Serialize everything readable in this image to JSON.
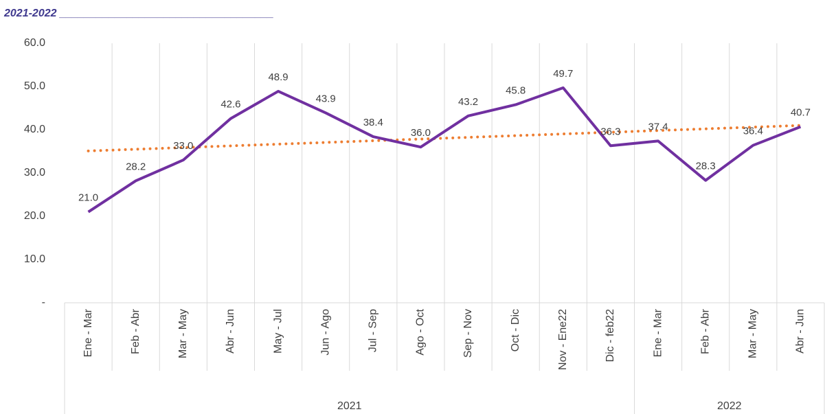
{
  "chart_data": {
    "type": "line",
    "title": "2021-2022 ___________________________________",
    "categories": [
      "Ene - Mar",
      "Feb - Abr",
      "Mar - May",
      "Abr - Jun",
      "May - Jul",
      "Jun - Ago",
      "Jul - Sep",
      "Ago - Oct",
      "Sep - Nov",
      "Oct - Dic",
      "Nov - Ene22",
      "Dic - feb22",
      "Ene - Mar",
      "Feb - Abr",
      "Mar - May",
      "Abr - Jun"
    ],
    "groups": [
      {
        "label": "2021",
        "count": 12
      },
      {
        "label": "2022",
        "count": 4
      }
    ],
    "values": [
      21.0,
      28.2,
      33.0,
      42.6,
      48.9,
      43.9,
      38.4,
      36.0,
      43.2,
      45.8,
      49.7,
      36.3,
      37.4,
      28.3,
      36.4,
      40.7
    ],
    "value_labels": [
      "21.0",
      "28.2",
      "33.0",
      "42.6",
      "48.9",
      "43.9",
      "38.4",
      "36.0",
      "43.2",
      "45.8",
      "49.7",
      "36.3",
      "37.4",
      "28.3",
      "36.4",
      "40.7"
    ],
    "color": "#7030a0",
    "trendline": {
      "values": [
        35.1,
        41.0
      ],
      "color": "#ed7d31"
    },
    "ylim": [
      0,
      60
    ],
    "yticks": [
      {
        "value": 0,
        "label": "-"
      },
      {
        "value": 10,
        "label": "10.0"
      },
      {
        "value": 20,
        "label": "20.0"
      },
      {
        "value": 30,
        "label": "30.0"
      },
      {
        "value": 40,
        "label": "40.0"
      },
      {
        "value": 50,
        "label": "50.0"
      },
      {
        "value": 60,
        "label": "60.0"
      }
    ],
    "grid": true
  }
}
